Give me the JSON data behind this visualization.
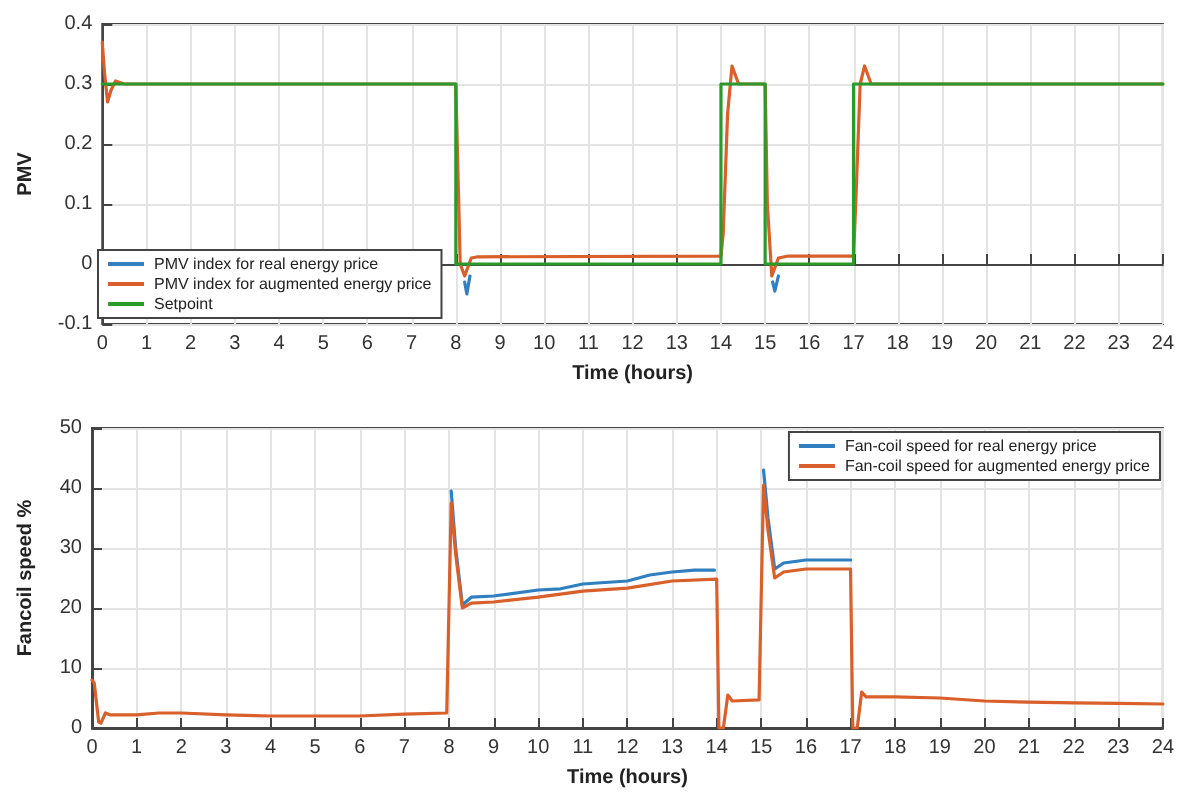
{
  "chart_data": [
    {
      "type": "line",
      "xlabel": "Time (hours)",
      "ylabel": "PMV",
      "xlim": [
        0,
        24
      ],
      "xticks": [
        0,
        1,
        2,
        3,
        4,
        5,
        6,
        7,
        8,
        9,
        10,
        11,
        12,
        13,
        14,
        15,
        16,
        17,
        18,
        19,
        20,
        21,
        22,
        23,
        24
      ],
      "ylim": [
        -0.1,
        0.4
      ],
      "yticks": [
        -0.1,
        0,
        0.1,
        0.2,
        0.3,
        0.4
      ],
      "grid": true,
      "legend": "bottom left",
      "marker": "none",
      "line_style": "solid",
      "series": [
        {
          "name": "PMV index for real energy price",
          "color": "#2f7fc1",
          "x": [
            8.2,
            8.25,
            8.32,
            12,
            15.17,
            15.22,
            15.3
          ],
          "values": [
            -0.03,
            -0.05,
            -0.02,
            null,
            -0.03,
            -0.045,
            -0.02
          ]
        },
        {
          "name": "PMV index for augmented energy price",
          "color": "#d95f2b",
          "x": [
            0,
            0.05,
            0.12,
            0.2,
            0.3,
            0.5,
            8,
            8.1,
            8.2,
            8.35,
            8.5,
            14,
            14.05,
            14.15,
            14.25,
            14.4,
            15,
            15.05,
            15.15,
            15.3,
            15.5,
            17,
            17.05,
            17.15,
            17.25,
            17.4,
            24
          ],
          "values": [
            0.37,
            0.32,
            0.27,
            0.29,
            0.305,
            0.3,
            0.3,
            0.0,
            -0.02,
            0.01,
            0.012,
            0.013,
            0.05,
            0.25,
            0.33,
            0.3,
            0.3,
            0.1,
            -0.02,
            0.01,
            0.013,
            0.013,
            0.1,
            0.3,
            0.33,
            0.3,
            0.3
          ]
        },
        {
          "name": "Setpoint",
          "color": "#2a9a2a",
          "x": [
            0,
            8,
            8,
            14,
            14,
            15,
            15,
            17,
            17,
            24
          ],
          "values": [
            0.3,
            0.3,
            0,
            0,
            0.3,
            0.3,
            0,
            0,
            0.3,
            0.3
          ]
        }
      ]
    },
    {
      "type": "line",
      "xlabel": "Time (hours)",
      "ylabel": "Fancoil speed %",
      "xlim": [
        0,
        24
      ],
      "xticks": [
        0,
        1,
        2,
        3,
        4,
        5,
        6,
        7,
        8,
        9,
        10,
        11,
        12,
        13,
        14,
        15,
        16,
        17,
        18,
        19,
        20,
        21,
        22,
        23,
        24
      ],
      "ylim": [
        0,
        50
      ],
      "yticks": [
        0,
        10,
        20,
        30,
        40,
        50
      ],
      "grid": true,
      "legend": "top right",
      "marker": "none",
      "line_style": "solid",
      "series": [
        {
          "name": "Fan-coil speed for real energy price",
          "color": "#2f7fc1",
          "x": [
            8.05,
            8.15,
            8.3,
            8.5,
            9,
            10,
            10.5,
            11,
            12,
            12.5,
            13,
            13.5,
            13.95,
            14.5,
            15.05,
            15.15,
            15.3,
            15.5,
            16,
            17
          ],
          "values": [
            39.5,
            30,
            20.5,
            21.8,
            22,
            23,
            23.2,
            24,
            24.5,
            25.5,
            26,
            26.3,
            26.3,
            null,
            43,
            35,
            26.5,
            27.5,
            28,
            28
          ]
        },
        {
          "name": "Fan-coil speed for augmented energy price",
          "color": "#d95f2b",
          "x": [
            0,
            0.05,
            0.15,
            0.2,
            0.3,
            0.4,
            1,
            1.5,
            2,
            3,
            4,
            6,
            7,
            7.95,
            8.05,
            8.15,
            8.3,
            8.5,
            9,
            10,
            11,
            12,
            13,
            14,
            14.05,
            14.15,
            14.25,
            14.35,
            14.95,
            15.05,
            15.15,
            15.3,
            15.5,
            16,
            17,
            17.05,
            17.15,
            17.25,
            17.35,
            18,
            19,
            20,
            21,
            22,
            23,
            24
          ],
          "values": [
            8,
            7.5,
            1,
            0.8,
            2.5,
            2.2,
            2.2,
            2.5,
            2.5,
            2.2,
            2,
            2,
            2.3,
            2.5,
            37.5,
            29,
            20,
            20.8,
            21,
            21.8,
            22.8,
            23.3,
            24.5,
            24.8,
            0,
            0,
            5.5,
            4.5,
            4.7,
            40.5,
            33,
            25,
            26,
            26.5,
            26.5,
            0,
            0,
            6,
            5.2,
            5.2,
            5,
            4.5,
            4.3,
            4.2,
            4.1,
            4
          ]
        }
      ]
    }
  ]
}
